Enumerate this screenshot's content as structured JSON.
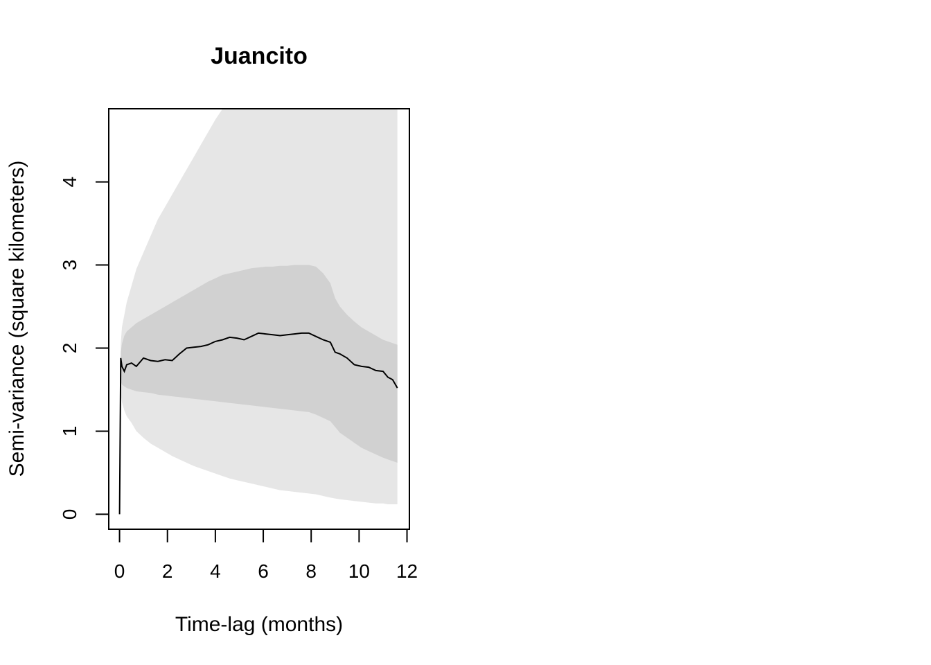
{
  "chart_data": {
    "type": "line",
    "title": "Juancito",
    "xlabel": "Time-lag (months)",
    "ylabel": "Semi-variance (square kilometers)",
    "xlim": [
      -0.45,
      12.1
    ],
    "ylim": [
      -0.18,
      4.88
    ],
    "x_ticks": [
      0,
      2,
      4,
      6,
      8,
      10,
      12
    ],
    "y_ticks": [
      0,
      1,
      2,
      3,
      4
    ],
    "grid": false,
    "legend": "none",
    "colors": {
      "line": "#000000",
      "inner_band": "#d1d1d1",
      "outer_band": "#e6e6e6",
      "axes": "#000000"
    },
    "series": [
      {
        "values_x": [
          0,
          0.05,
          0.1,
          0.2,
          0.3,
          0.5,
          0.7,
          1.0,
          1.3,
          1.6,
          1.9,
          2.2,
          2.5,
          2.8,
          3.1,
          3.4,
          3.7,
          4.0,
          4.3,
          4.6,
          4.9,
          5.2,
          5.5,
          5.8,
          6.1,
          6.4,
          6.7,
          7.0,
          7.3,
          7.6,
          7.9,
          8.2,
          8.5,
          8.8,
          9.0,
          9.2,
          9.5,
          9.8,
          10.1,
          10.4,
          10.7,
          11.0,
          11.2,
          11.4,
          11.6
        ],
        "values_y": [
          0,
          1.88,
          1.78,
          1.72,
          1.8,
          1.82,
          1.78,
          1.88,
          1.85,
          1.84,
          1.86,
          1.85,
          1.93,
          2.0,
          2.01,
          2.02,
          2.04,
          2.08,
          2.1,
          2.13,
          2.12,
          2.1,
          2.14,
          2.18,
          2.17,
          2.16,
          2.15,
          2.16,
          2.17,
          2.18,
          2.18,
          2.14,
          2.1,
          2.07,
          1.95,
          1.93,
          1.88,
          1.8,
          1.78,
          1.77,
          1.73,
          1.72,
          1.65,
          1.62,
          1.52
        ],
        "inner_lower": [
          0,
          1.6,
          1.56,
          1.54,
          1.52,
          1.5,
          1.48,
          1.47,
          1.46,
          1.44,
          1.43,
          1.42,
          1.41,
          1.4,
          1.39,
          1.38,
          1.37,
          1.36,
          1.35,
          1.34,
          1.33,
          1.32,
          1.31,
          1.3,
          1.29,
          1.28,
          1.27,
          1.26,
          1.25,
          1.24,
          1.23,
          1.2,
          1.16,
          1.12,
          1.05,
          0.98,
          0.92,
          0.86,
          0.8,
          0.76,
          0.72,
          0.68,
          0.66,
          0.64,
          0.62
        ],
        "inner_upper": [
          0,
          1.95,
          2.05,
          2.15,
          2.2,
          2.25,
          2.3,
          2.35,
          2.4,
          2.45,
          2.5,
          2.55,
          2.6,
          2.65,
          2.7,
          2.75,
          2.8,
          2.84,
          2.88,
          2.9,
          2.92,
          2.94,
          2.96,
          2.97,
          2.98,
          2.98,
          2.99,
          2.99,
          3.0,
          3.0,
          3.0,
          2.98,
          2.9,
          2.78,
          2.6,
          2.5,
          2.4,
          2.32,
          2.25,
          2.2,
          2.15,
          2.1,
          2.08,
          2.06,
          2.04
        ],
        "outer_lower": [
          0,
          1.45,
          1.35,
          1.25,
          1.18,
          1.1,
          1.0,
          0.92,
          0.85,
          0.8,
          0.75,
          0.7,
          0.66,
          0.62,
          0.58,
          0.55,
          0.52,
          0.49,
          0.46,
          0.43,
          0.41,
          0.39,
          0.37,
          0.35,
          0.33,
          0.31,
          0.29,
          0.28,
          0.27,
          0.26,
          0.25,
          0.24,
          0.22,
          0.2,
          0.19,
          0.18,
          0.17,
          0.16,
          0.15,
          0.14,
          0.13,
          0.13,
          0.12,
          0.12,
          0.12
        ],
        "outer_upper": [
          0,
          2.05,
          2.25,
          2.4,
          2.55,
          2.75,
          2.95,
          3.15,
          3.35,
          3.55,
          3.7,
          3.85,
          4.0,
          4.15,
          4.3,
          4.45,
          4.6,
          4.75,
          4.88,
          4.88,
          4.88,
          4.88,
          4.88,
          4.88,
          4.88,
          4.88,
          4.88,
          4.88,
          4.88,
          4.88,
          4.88,
          4.88,
          4.88,
          4.88,
          4.88,
          4.88,
          4.88,
          4.88,
          4.88,
          4.88,
          4.88,
          4.88,
          4.88,
          4.88,
          4.88
        ]
      }
    ]
  }
}
